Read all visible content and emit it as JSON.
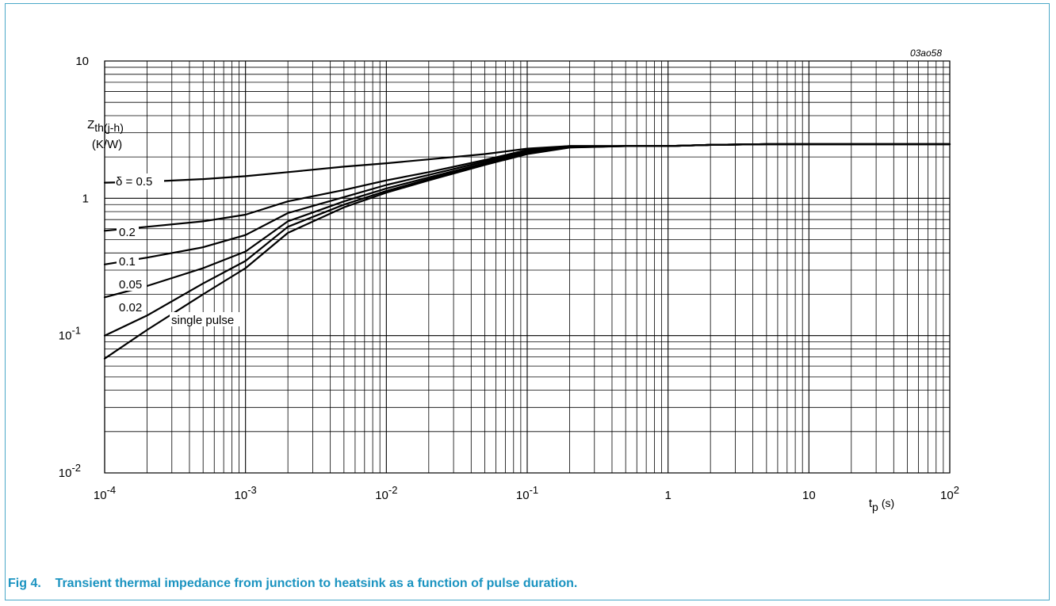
{
  "caption": {
    "fig_label": "Fig 4.",
    "text": "Transient thermal impedance from junction to heatsink as a function of pulse duration."
  },
  "colors": {
    "frame": "#4aa8c8",
    "caption": "#1a93c0",
    "curves": "#000000",
    "grid": "#000000"
  },
  "chart_data": {
    "type": "line",
    "figure_id": "03ao58",
    "x_scale": "log",
    "y_scale": "log",
    "xlim": [
      0.0001,
      100
    ],
    "ylim": [
      0.01,
      10
    ],
    "grid": true,
    "x_ticks": [
      {
        "value": 0.0001,
        "base": "10",
        "exp": "-4"
      },
      {
        "value": 0.001,
        "base": "10",
        "exp": "-3"
      },
      {
        "value": 0.01,
        "base": "10",
        "exp": "-2"
      },
      {
        "value": 0.1,
        "base": "10",
        "exp": "-1"
      },
      {
        "value": 1,
        "base": "1",
        "exp": ""
      },
      {
        "value": 10,
        "base": "10",
        "exp": ""
      },
      {
        "value": 100,
        "base": "10",
        "exp": "2"
      }
    ],
    "y_ticks": [
      {
        "value": 10,
        "base": "10",
        "exp": ""
      },
      {
        "value": 1,
        "base": "1",
        "exp": ""
      },
      {
        "value": 0.1,
        "base": "10",
        "exp": "-1"
      },
      {
        "value": 0.01,
        "base": "10",
        "exp": "-2"
      }
    ],
    "xlabel": {
      "main": "t",
      "sub": "p",
      "unit": "(s)"
    },
    "ylabel": {
      "main": "Z",
      "sub": "th(j-h)",
      "unit": "(K/W)"
    },
    "series": [
      {
        "name": "δ = 0.5",
        "x": [
          0.0001,
          0.0002,
          0.0005,
          0.001,
          0.002,
          0.005,
          0.01,
          0.02,
          0.05,
          0.1,
          0.2,
          0.5,
          1,
          2,
          5,
          10,
          100
        ],
        "y": [
          1.3,
          1.32,
          1.38,
          1.45,
          1.55,
          1.7,
          1.8,
          1.92,
          2.1,
          2.3,
          2.4,
          2.4,
          2.4,
          2.45,
          2.48,
          2.48,
          2.48
        ]
      },
      {
        "name": "0.2",
        "x": [
          0.0001,
          0.0002,
          0.0005,
          0.001,
          0.002,
          0.005,
          0.01,
          0.02,
          0.05,
          0.1,
          0.2,
          0.5,
          1,
          2,
          5,
          10,
          100
        ],
        "y": [
          0.58,
          0.62,
          0.68,
          0.76,
          0.95,
          1.15,
          1.35,
          1.55,
          1.9,
          2.25,
          2.4,
          2.4,
          2.4,
          2.45,
          2.48,
          2.48,
          2.48
        ]
      },
      {
        "name": "0.1",
        "x": [
          0.0001,
          0.0002,
          0.0005,
          0.001,
          0.002,
          0.005,
          0.01,
          0.02,
          0.05,
          0.1,
          0.2,
          0.5,
          1,
          2,
          5,
          10,
          100
        ],
        "y": [
          0.33,
          0.37,
          0.44,
          0.54,
          0.78,
          1.02,
          1.25,
          1.48,
          1.85,
          2.2,
          2.38,
          2.4,
          2.4,
          2.45,
          2.48,
          2.48,
          2.48
        ]
      },
      {
        "name": "0.05",
        "x": [
          0.0001,
          0.0002,
          0.0005,
          0.001,
          0.002,
          0.005,
          0.01,
          0.02,
          0.05,
          0.1,
          0.2,
          0.5,
          1,
          2,
          5,
          10,
          100
        ],
        "y": [
          0.19,
          0.23,
          0.31,
          0.41,
          0.68,
          0.95,
          1.18,
          1.42,
          1.8,
          2.15,
          2.36,
          2.4,
          2.4,
          2.45,
          2.48,
          2.48,
          2.48
        ]
      },
      {
        "name": "0.02",
        "x": [
          0.0001,
          0.0002,
          0.0005,
          0.001,
          0.002,
          0.005,
          0.01,
          0.02,
          0.05,
          0.1,
          0.2,
          0.5,
          1,
          2,
          5,
          10,
          100
        ],
        "y": [
          0.1,
          0.14,
          0.24,
          0.35,
          0.62,
          0.9,
          1.13,
          1.38,
          1.77,
          2.12,
          2.35,
          2.4,
          2.4,
          2.45,
          2.48,
          2.48,
          2.48
        ]
      },
      {
        "name": "single pulse",
        "x": [
          0.0001,
          0.0002,
          0.0005,
          0.001,
          0.002,
          0.005,
          0.01,
          0.02,
          0.05,
          0.1,
          0.2,
          0.5,
          1,
          2,
          5,
          10,
          100
        ],
        "y": [
          0.068,
          0.11,
          0.2,
          0.31,
          0.56,
          0.86,
          1.1,
          1.35,
          1.75,
          2.1,
          2.34,
          2.4,
          2.4,
          2.45,
          2.48,
          2.48,
          2.48
        ]
      }
    ]
  }
}
